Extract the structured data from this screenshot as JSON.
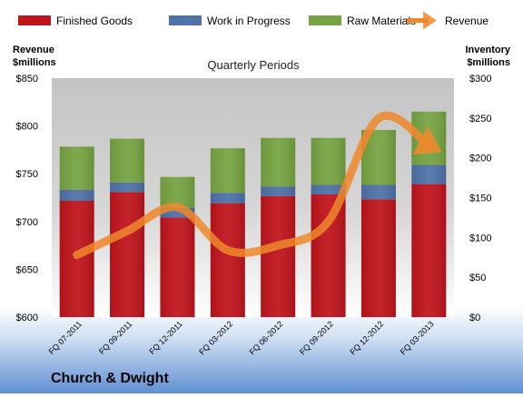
{
  "chart_data": {
    "type": "bar",
    "stacked": true,
    "title": "Quarterly Periods",
    "company": "Church & Dwight",
    "left_axis": {
      "label_line1": "Revenue",
      "label_line2": "$millions",
      "ylim": [
        600,
        850
      ],
      "ticks": [
        "$600",
        "$650",
        "$700",
        "$750",
        "$800",
        "$850"
      ]
    },
    "right_axis": {
      "label_line1": "Inventory",
      "label_line2": "$millions",
      "ylim": [
        0,
        300
      ],
      "ticks": [
        "$0",
        "$50",
        "$100",
        "$150",
        "$200",
        "$250",
        "$300"
      ]
    },
    "categories": [
      "FQ 07-2011",
      "FQ 09-2011",
      "FQ 12-2011",
      "FQ 03-2012",
      "FQ 06-2012",
      "FQ 09-2012",
      "FQ 12-2012",
      "FQ 03-2013"
    ],
    "series": [
      {
        "name": "Finished Goods",
        "color": "#C0141C",
        "axis": "right",
        "values": [
          146,
          157,
          125,
          143,
          152,
          154,
          148,
          167
        ]
      },
      {
        "name": "Work in Progress",
        "color": "#4F72A8",
        "axis": "right",
        "values": [
          14,
          12,
          12,
          13,
          12,
          12,
          18,
          24
        ]
      },
      {
        "name": "Raw Materials",
        "color": "#77A443",
        "axis": "right",
        "values": [
          54,
          55,
          39,
          56,
          61,
          59,
          69,
          67
        ]
      }
    ],
    "line_series": {
      "name": "Revenue",
      "color": "#F0882A",
      "axis": "left",
      "values": [
        665,
        690,
        715,
        670,
        675,
        700,
        808,
        780
      ]
    },
    "legend_position": "top",
    "grid": false
  }
}
